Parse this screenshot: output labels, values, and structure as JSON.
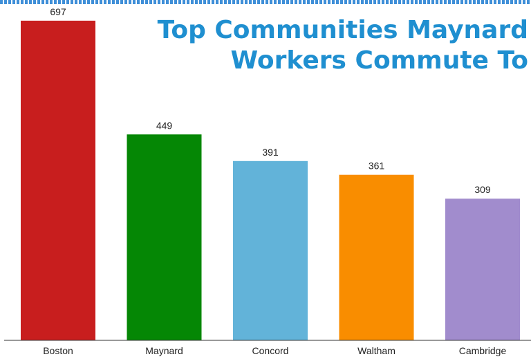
{
  "chart_data": {
    "type": "bar",
    "title_lines": [
      "Top Communities Maynard",
      "Workers Commute To"
    ],
    "categories": [
      "Boston",
      "Maynard",
      "Concord",
      "Waltham",
      "Cambridge"
    ],
    "values": [
      697,
      449,
      391,
      361,
      309
    ],
    "colors": [
      "#c81e1e",
      "#058705",
      "#62b3d9",
      "#f98d00",
      "#a18ccd"
    ],
    "xlabel": "",
    "ylabel": "",
    "ylim": [
      0,
      712
    ],
    "grid": false,
    "legend": "none",
    "header_stripe_color": "#3f8fd8"
  }
}
